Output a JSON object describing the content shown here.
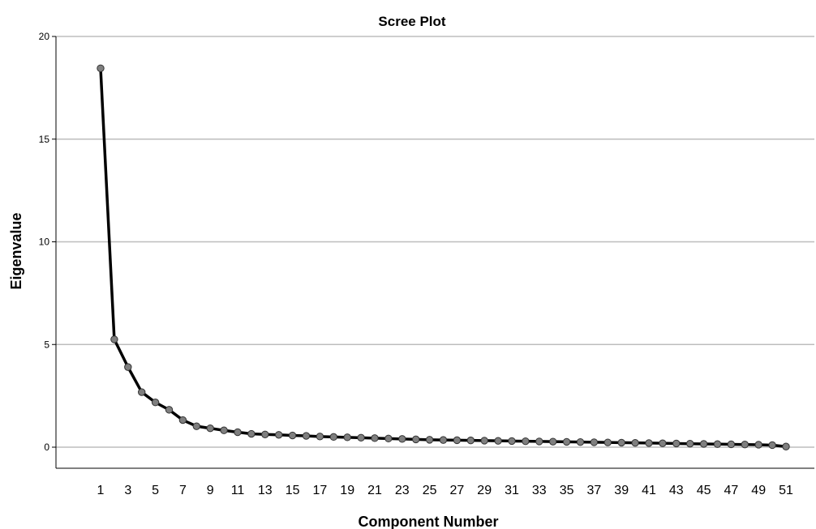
{
  "chart_data": {
    "type": "line",
    "title": "Scree Plot",
    "xlabel": "Component Number",
    "ylabel": "Eigenvalue",
    "ylim": [
      0,
      20
    ],
    "yticks": [
      0,
      5,
      10,
      15,
      20
    ],
    "xticks": [
      1,
      3,
      5,
      7,
      9,
      11,
      13,
      15,
      17,
      19,
      21,
      23,
      25,
      27,
      29,
      31,
      33,
      35,
      37,
      39,
      41,
      43,
      45,
      47,
      49,
      51
    ],
    "grid": "horizontal",
    "legend": "none",
    "line_color": "#000000",
    "marker_color": "#7f7f7f",
    "series": [
      {
        "x": [
          1,
          2,
          3,
          4,
          5,
          6,
          7,
          8,
          9,
          10,
          11,
          12,
          13,
          14,
          15,
          16,
          17,
          18,
          19,
          20,
          21,
          22,
          23,
          24,
          25,
          26,
          27,
          28,
          29,
          30,
          31,
          32,
          33,
          34,
          35,
          36,
          37,
          38,
          39,
          40,
          41,
          42,
          43,
          44,
          45,
          46,
          47,
          48,
          49,
          50,
          51
        ],
        "values": [
          18.45,
          5.25,
          3.9,
          2.68,
          2.18,
          1.82,
          1.32,
          1.02,
          0.92,
          0.82,
          0.73,
          0.65,
          0.62,
          0.6,
          0.57,
          0.55,
          0.52,
          0.5,
          0.48,
          0.46,
          0.44,
          0.42,
          0.4,
          0.38,
          0.36,
          0.35,
          0.34,
          0.33,
          0.32,
          0.31,
          0.3,
          0.29,
          0.28,
          0.27,
          0.26,
          0.25,
          0.24,
          0.23,
          0.22,
          0.21,
          0.2,
          0.19,
          0.18,
          0.17,
          0.16,
          0.15,
          0.14,
          0.13,
          0.12,
          0.1,
          0.03
        ]
      }
    ]
  }
}
